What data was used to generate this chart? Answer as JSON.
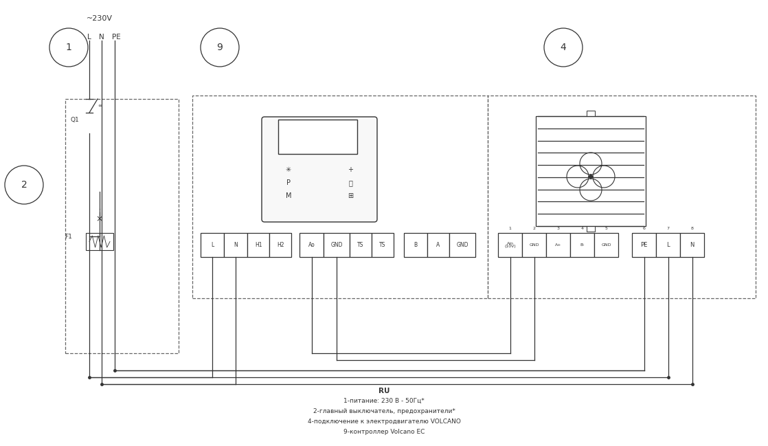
{
  "bg_color": "#ffffff",
  "line_color": "#333333",
  "figsize": [
    11.18,
    6.49
  ],
  "dpi": 100,
  "voltage_label": "~230V",
  "lnpe_labels": [
    "L",
    "N",
    "PE"
  ],
  "circle_labels": [
    "1",
    "2",
    "9",
    "4"
  ],
  "controller_terminals": [
    "L",
    "N",
    "H1",
    "H2",
    "Ao",
    "GND",
    "TS",
    "TS",
    "B",
    "A",
    "GND"
  ],
  "motor_g1_labels": [
    "Ain\n(10V)",
    "GND",
    "A+",
    "B-",
    "GND"
  ],
  "motor_g1_nums": [
    "1",
    "2",
    "3",
    "4",
    "5"
  ],
  "motor_g2_labels": [
    "PE",
    "L",
    "N"
  ],
  "motor_g2_nums": [
    "6",
    "7",
    "8"
  ],
  "footnote": [
    "RU",
    "1-питание: 230 В - 50Гц*",
    "2-главный выключатель, предохранители*",
    "4-подключение к электродвигателю VOLCANO",
    "9-контроллер Volcano EC"
  ]
}
